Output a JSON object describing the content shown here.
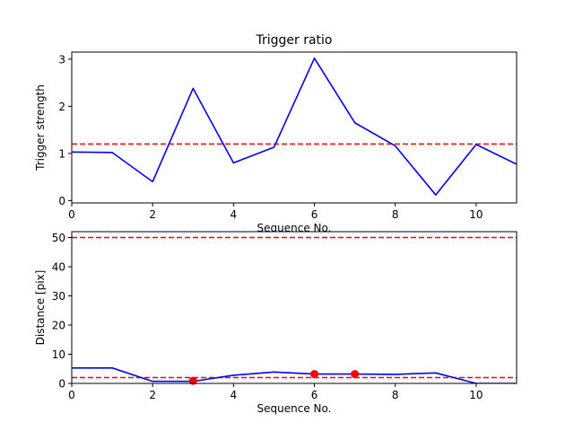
{
  "chart_data": [
    {
      "type": "line",
      "title": "Trigger ratio",
      "xlabel": "Sequence No.",
      "ylabel": "Trigger strength",
      "xlim": [
        0,
        11
      ],
      "ylim": [
        -0.05,
        3.15
      ],
      "xticks": [
        0,
        2,
        4,
        6,
        8,
        10
      ],
      "yticks": [
        0,
        1,
        2,
        3
      ],
      "grid": false,
      "series": [
        {
          "color": "#0000ff",
          "x": [
            0,
            1,
            2,
            3,
            4,
            5,
            6,
            7,
            8,
            9,
            10,
            11
          ],
          "y": [
            1.03,
            1.02,
            0.4,
            2.38,
            0.8,
            1.13,
            3.02,
            1.65,
            1.16,
            0.12,
            1.19,
            0.77
          ]
        }
      ],
      "hlines": [
        {
          "y": 1.2,
          "color": "#ff0000",
          "style": "dashed"
        }
      ]
    },
    {
      "type": "line",
      "title": "",
      "xlabel": "Sequence No.",
      "ylabel": "Distance [pix]",
      "xlim": [
        0,
        11
      ],
      "ylim": [
        0,
        52
      ],
      "xticks": [
        0,
        2,
        4,
        6,
        8,
        10
      ],
      "yticks": [
        0,
        10,
        20,
        30,
        40,
        50
      ],
      "grid": false,
      "series": [
        {
          "color": "#0000ff",
          "x": [
            0,
            1,
            2,
            3,
            4,
            5,
            6,
            7,
            8,
            9,
            10,
            11
          ],
          "y": [
            5.3,
            5.3,
            0.7,
            0.7,
            2.8,
            3.9,
            3.2,
            3.2,
            3.1,
            3.6,
            0.0,
            0.0
          ]
        }
      ],
      "markers": [
        {
          "color": "#ff0000",
          "x": [
            3,
            6,
            7
          ],
          "y": [
            0.9,
            3.2,
            3.2
          ]
        }
      ],
      "hlines": [
        {
          "y": 50,
          "color": "#ff0000",
          "style": "dashed"
        },
        {
          "y": 2,
          "color": "#ff0000",
          "style": "dashed"
        }
      ]
    }
  ]
}
